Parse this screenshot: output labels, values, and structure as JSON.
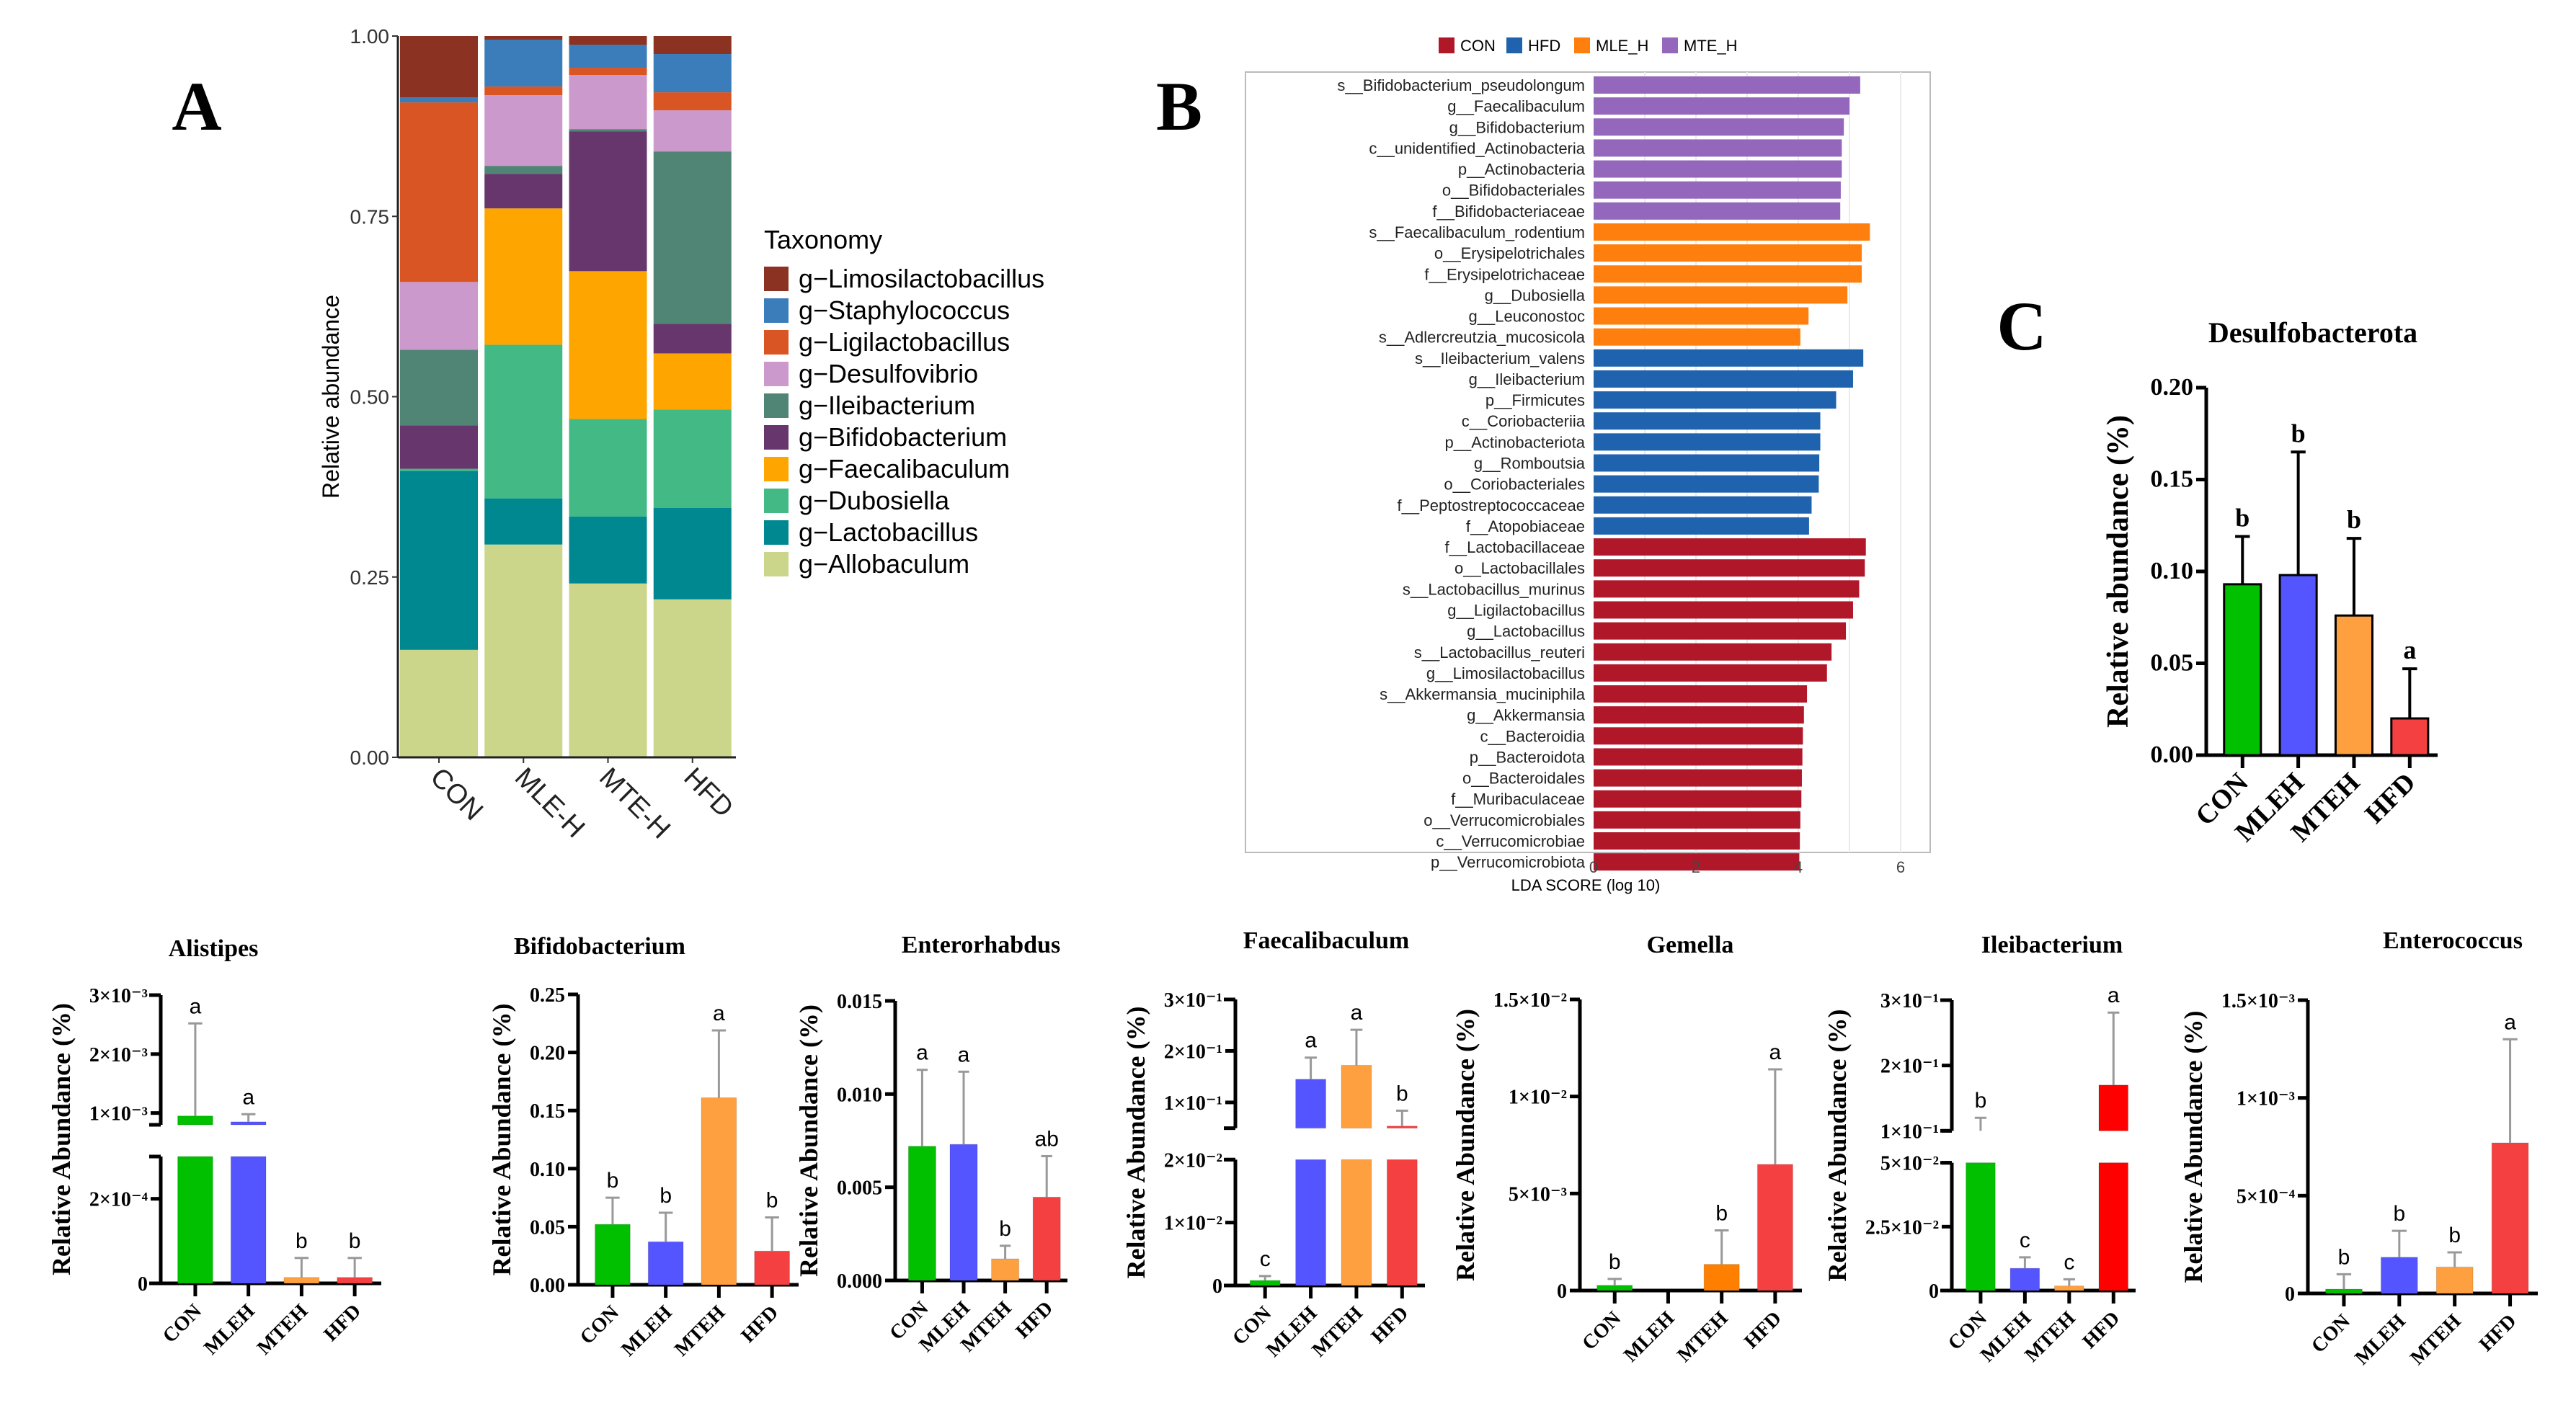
{
  "panel_labels": {
    "a": "A",
    "b": "B",
    "c": "C"
  },
  "group_colors": {
    "CON": "#00c000",
    "MLEH": "#5555ff",
    "MTEH": "#ffa040",
    "HFD": "#f44040"
  },
  "chart_data": [
    {
      "id": "A",
      "type": "bar",
      "stacked": true,
      "title": "",
      "xlabel": "",
      "ylabel": "Relative abundance",
      "ylim": [
        0,
        1
      ],
      "yticks": [
        {
          "v": 0,
          "label": "0.00"
        },
        {
          "v": 0.25,
          "label": "0.25"
        },
        {
          "v": 0.5,
          "label": "0.50"
        },
        {
          "v": 0.75,
          "label": "0.75"
        },
        {
          "v": 1,
          "label": "1.00"
        }
      ],
      "categories": [
        "CON",
        "MLE-H",
        "MTE-H",
        "HFD"
      ],
      "legend_title": "Taxonomy",
      "legend_placement": "right",
      "series": [
        {
          "name": "g−Limosilactobacillus",
          "color": "#8b3222",
          "values": [
            0.085,
            0.005,
            0.012,
            0.025
          ]
        },
        {
          "name": "g−Staphylococcus",
          "color": "#3a7dba",
          "values": [
            0.007,
            0.065,
            0.032,
            0.053
          ]
        },
        {
          "name": "g−Ligilactobacillus",
          "color": "#d95624",
          "values": [
            0.249,
            0.012,
            0.01,
            0.025
          ]
        },
        {
          "name": "g−Desulfovibrio",
          "color": "#cc99cc",
          "values": [
            0.094,
            0.098,
            0.075,
            0.057
          ]
        },
        {
          "name": "g−Ileibacterium",
          "color": "#508575",
          "values": [
            0.105,
            0.011,
            0.003,
            0.239
          ]
        },
        {
          "name": "g−Bifidobacterium",
          "color": "#66366c",
          "values": [
            0.06,
            0.048,
            0.194,
            0.041
          ]
        },
        {
          "name": "g−Faecalibaculum",
          "color": "#ffa500",
          "values": [
            0.0,
            0.189,
            0.205,
            0.078
          ]
        },
        {
          "name": "g−Dubosiella",
          "color": "#43b985",
          "values": [
            0.003,
            0.213,
            0.135,
            0.136
          ]
        },
        {
          "name": "g−Lactobacillus",
          "color": "#008891",
          "values": [
            0.248,
            0.064,
            0.093,
            0.127
          ]
        },
        {
          "name": "g−Allobaculum",
          "color": "#cbd68a",
          "values": [
            0.149,
            0.295,
            0.241,
            0.219
          ]
        }
      ]
    },
    {
      "id": "B",
      "type": "bar",
      "orientation": "horizontal",
      "title": "",
      "xlabel": "LDA SCORE (log 10)",
      "xlim": [
        0,
        6.5
      ],
      "xticks": [
        {
          "v": 0,
          "label": "0"
        },
        {
          "v": 2,
          "label": "2"
        },
        {
          "v": 4,
          "label": "4"
        },
        {
          "v": 6,
          "label": "6"
        }
      ],
      "legend_placement": "top",
      "legend": [
        {
          "name": "CON",
          "color": "#b0182a"
        },
        {
          "name": "HFD",
          "color": "#1f62ad"
        },
        {
          "name": "MLE_H",
          "color": "#ff7f0e"
        },
        {
          "name": "MTE_H",
          "color": "#9467bd"
        }
      ],
      "rows": [
        {
          "label": "s__Bifidobacterium_pseudolongum",
          "group": "MTE_H",
          "value": 5.21
        },
        {
          "label": "g__Faecalibaculum",
          "group": "MTE_H",
          "value": 5.0
        },
        {
          "label": "g__Bifidobacterium",
          "group": "MTE_H",
          "value": 4.89
        },
        {
          "label": "c__unidentified_Actinobacteria",
          "group": "MTE_H",
          "value": 4.85
        },
        {
          "label": "p__Actinobacteria",
          "group": "MTE_H",
          "value": 4.85
        },
        {
          "label": "o__Bifidobacteriales",
          "group": "MTE_H",
          "value": 4.83
        },
        {
          "label": "f__Bifidobacteriaceae",
          "group": "MTE_H",
          "value": 4.82
        },
        {
          "label": "s__Faecalibaculum_rodentium",
          "group": "MLE_H",
          "value": 5.4
        },
        {
          "label": "o__Erysipelotrichales",
          "group": "MLE_H",
          "value": 5.24
        },
        {
          "label": "f__Erysipelotrichaceae",
          "group": "MLE_H",
          "value": 5.24
        },
        {
          "label": "g__Dubosiella",
          "group": "MLE_H",
          "value": 4.96
        },
        {
          "label": "g__Leuconostoc",
          "group": "MLE_H",
          "value": 4.2
        },
        {
          "label": "s__Adlercreutzia_mucosicola",
          "group": "MLE_H",
          "value": 4.04
        },
        {
          "label": "s__Ileibacterium_valens",
          "group": "HFD",
          "value": 5.27
        },
        {
          "label": "g__Ileibacterium",
          "group": "HFD",
          "value": 5.07
        },
        {
          "label": "p__Firmicutes",
          "group": "HFD",
          "value": 4.74
        },
        {
          "label": "c__Coriobacteriia",
          "group": "HFD",
          "value": 4.43
        },
        {
          "label": "p__Actinobacteriota",
          "group": "HFD",
          "value": 4.43
        },
        {
          "label": "g__Romboutsia",
          "group": "HFD",
          "value": 4.41
        },
        {
          "label": "o__Coriobacteriales",
          "group": "HFD",
          "value": 4.4
        },
        {
          "label": "f__Peptostreptococcaceae",
          "group": "HFD",
          "value": 4.26
        },
        {
          "label": "f__Atopobiaceae",
          "group": "HFD",
          "value": 4.21
        },
        {
          "label": "f__Lactobacillaceae",
          "group": "CON",
          "value": 5.32
        },
        {
          "label": "o__Lactobacillales",
          "group": "CON",
          "value": 5.3
        },
        {
          "label": "s__Lactobacillus_murinus",
          "group": "CON",
          "value": 5.19
        },
        {
          "label": "g__Ligilactobacillus",
          "group": "CON",
          "value": 5.07
        },
        {
          "label": "g__Lactobacillus",
          "group": "CON",
          "value": 4.93
        },
        {
          "label": "s__Lactobacillus_reuteri",
          "group": "CON",
          "value": 4.65
        },
        {
          "label": "g__Limosilactobacillus",
          "group": "CON",
          "value": 4.56
        },
        {
          "label": "s__Akkermansia_muciniphila",
          "group": "CON",
          "value": 4.17
        },
        {
          "label": "g__Akkermansia",
          "group": "CON",
          "value": 4.11
        },
        {
          "label": "c__Bacteroidia",
          "group": "CON",
          "value": 4.09
        },
        {
          "label": "p__Bacteroidota",
          "group": "CON",
          "value": 4.08
        },
        {
          "label": "o__Bacteroidales",
          "group": "CON",
          "value": 4.07
        },
        {
          "label": "f__Muribaculaceae",
          "group": "CON",
          "value": 4.06
        },
        {
          "label": "o__Verrucomicrobiales",
          "group": "CON",
          "value": 4.04
        },
        {
          "label": "c__Verrucomicrobiae",
          "group": "CON",
          "value": 4.03
        },
        {
          "label": "p__Verrucomicrobiota",
          "group": "CON",
          "value": 4.02
        }
      ]
    },
    {
      "id": "C",
      "type": "bar",
      "title": "Desulfobacterota",
      "ylabel": "Relative abundance (%)",
      "categories": [
        "CON",
        "MLEH",
        "MTEH",
        "HFD"
      ],
      "colors": [
        "#00c000",
        "#5555ff",
        "#ffa040",
        "#f44040"
      ],
      "values": [
        0.093,
        0.098,
        0.076,
        0.02
      ],
      "errors_upper": [
        0.119,
        0.165,
        0.118,
        0.047
      ],
      "letters": [
        "b",
        "b",
        "b",
        "a"
      ],
      "segments": [
        [
          0,
          0.2
        ]
      ],
      "yticks": [
        {
          "v": 0,
          "label": "0.00"
        },
        {
          "v": 0.05,
          "label": "0.05"
        },
        {
          "v": 0.1,
          "label": "0.10"
        },
        {
          "v": 0.15,
          "label": "0.15"
        },
        {
          "v": 0.2,
          "label": "0.20"
        }
      ]
    },
    {
      "id": "alistipes",
      "type": "bar",
      "title": "Alistipes",
      "ylabel": "Relative Abundance (%)",
      "categories": [
        "CON",
        "MLEH",
        "MTEH",
        "HFD"
      ],
      "colors": [
        "#00c000",
        "#5555ff",
        "#ffa040",
        "#f44040"
      ],
      "values": [
        0.00095,
        0.00085,
        1.4e-05,
        1.4e-05
      ],
      "errors_upper": [
        0.00252,
        0.00098,
        6e-05,
        6e-05
      ],
      "letters": [
        "a",
        "a",
        "b",
        "b"
      ],
      "segments": [
        [
          0,
          0.0003
        ],
        [
          0.0008,
          0.003
        ]
      ],
      "yticks": [
        {
          "v": 0,
          "label": "0"
        },
        {
          "v": 0.0002,
          "label": "2×10⁻⁴"
        },
        {
          "v": 0.001,
          "label": "1×10⁻³"
        },
        {
          "v": 0.002,
          "label": "2×10⁻³"
        },
        {
          "v": 0.003,
          "label": "3×10⁻³"
        }
      ]
    },
    {
      "id": "bifidobacterium",
      "type": "bar",
      "title": "Bifidobacterium",
      "ylabel": "Relative Abundance (%)",
      "categories": [
        "CON",
        "MLEH",
        "MTEH",
        "HFD"
      ],
      "colors": [
        "#00c000",
        "#5555ff",
        "#ffa040",
        "#f44040"
      ],
      "values": [
        0.052,
        0.037,
        0.161,
        0.029
      ],
      "errors_upper": [
        0.075,
        0.062,
        0.219,
        0.058
      ],
      "letters": [
        "b",
        "b",
        "a",
        "b"
      ],
      "segments": [
        [
          0,
          0.25
        ]
      ],
      "yticks": [
        {
          "v": 0,
          "label": "0.00"
        },
        {
          "v": 0.05,
          "label": "0.05"
        },
        {
          "v": 0.1,
          "label": "0.10"
        },
        {
          "v": 0.15,
          "label": "0.15"
        },
        {
          "v": 0.2,
          "label": "0.20"
        },
        {
          "v": 0.25,
          "label": "0.25"
        }
      ]
    },
    {
      "id": "enterorhabdus",
      "type": "bar",
      "title": "Enterorhabdus",
      "ylabel": "Relative Abundance (%)",
      "categories": [
        "CON",
        "MLEH",
        "MTEH",
        "HFD"
      ],
      "colors": [
        "#00c000",
        "#5555ff",
        "#ffa040",
        "#f44040"
      ],
      "values": [
        0.0072,
        0.0073,
        0.00116,
        0.00447
      ],
      "errors_upper": [
        0.0113,
        0.0112,
        0.00186,
        0.00667
      ],
      "letters": [
        "a",
        "a",
        "b",
        "ab"
      ],
      "segments": [
        [
          0,
          0.015
        ]
      ],
      "yticks": [
        {
          "v": 0,
          "label": "0.000"
        },
        {
          "v": 0.005,
          "label": "0.005"
        },
        {
          "v": 0.01,
          "label": "0.010"
        },
        {
          "v": 0.015,
          "label": "0.015"
        }
      ]
    },
    {
      "id": "faecalibaculum",
      "type": "bar",
      "title": "Faecalibaculum",
      "ylabel": "Relative Abundance (%)",
      "categories": [
        "CON",
        "MLEH",
        "MTEH",
        "HFD"
      ],
      "colors": [
        "#00c000",
        "#5555ff",
        "#ffa040",
        "#f44040"
      ],
      "values": [
        0.0008,
        0.145,
        0.172,
        0.054
      ],
      "errors_upper": [
        0.0015,
        0.187,
        0.241,
        0.084
      ],
      "letters": [
        "c",
        "a",
        "a",
        "b"
      ],
      "segments": [
        [
          0,
          0.02
        ],
        [
          0.05,
          0.3
        ]
      ],
      "yticks": [
        {
          "v": 0,
          "label": "0"
        },
        {
          "v": 0.01,
          "label": "1×10⁻²"
        },
        {
          "v": 0.02,
          "label": "2×10⁻²"
        },
        {
          "v": 0.1,
          "label": "1×10⁻¹"
        },
        {
          "v": 0.2,
          "label": "2×10⁻¹"
        },
        {
          "v": 0.3,
          "label": "3×10⁻¹"
        }
      ]
    },
    {
      "id": "gemella",
      "type": "bar",
      "title": "Gemella",
      "ylabel": "Relative Abundance (%)",
      "categories": [
        "CON",
        "MLEH",
        "MTEH",
        "HFD"
      ],
      "colors": [
        "#00c000",
        "#5555ff",
        "#ff8000",
        "#f44040"
      ],
      "values": [
        0.00027,
        0,
        0.00135,
        0.0065
      ],
      "errors_upper": [
        0.0006,
        0,
        0.0031,
        0.0114
      ],
      "letters": [
        "b",
        "",
        "b",
        "a"
      ],
      "segments": [
        [
          0,
          0.015
        ]
      ],
      "yticks": [
        {
          "v": 0,
          "label": "0"
        },
        {
          "v": 0.005,
          "label": "5×10⁻³"
        },
        {
          "v": 0.01,
          "label": "1×10⁻²"
        },
        {
          "v": 0.015,
          "label": "1.5×10⁻²"
        }
      ]
    },
    {
      "id": "ileibacterium",
      "type": "bar",
      "title": "Ileibacterium",
      "ylabel": "Relative Abundance (%)",
      "categories": [
        "CON",
        "MLEH",
        "MTEH",
        "HFD"
      ],
      "colors": [
        "#00c000",
        "#5555ff",
        "#ffa040",
        "#ff0000"
      ],
      "values": [
        0.098,
        0.0087,
        0.0018,
        0.17
      ],
      "errors_upper": [
        0.12,
        0.013,
        0.0044,
        0.281
      ],
      "letters": [
        "b",
        "c",
        "c",
        "a"
      ],
      "segments": [
        [
          0,
          0.05
        ],
        [
          0.1,
          0.3
        ]
      ],
      "yticks": [
        {
          "v": 0,
          "label": "0"
        },
        {
          "v": 0.025,
          "label": "2.5×10⁻²"
        },
        {
          "v": 0.05,
          "label": "5×10⁻²"
        },
        {
          "v": 0.1,
          "label": "1×10⁻¹"
        },
        {
          "v": 0.2,
          "label": "2×10⁻¹"
        },
        {
          "v": 0.3,
          "label": "3×10⁻¹"
        }
      ]
    },
    {
      "id": "enterococcus",
      "type": "bar",
      "title": "Enterococcus",
      "ylabel": "Relative Abundance (%)",
      "categories": [
        "CON",
        "MLEH",
        "MTEH",
        "HFD"
      ],
      "colors": [
        "#00c000",
        "#5555ff",
        "#ffa040",
        "#f44040"
      ],
      "values": [
        2.2e-05,
        0.000185,
        0.000135,
        0.00077
      ],
      "errors_upper": [
        9.8e-05,
        0.00032,
        0.00021,
        0.0013
      ],
      "letters": [
        "b",
        "b",
        "b",
        "a"
      ],
      "segments": [
        [
          0,
          0.0015
        ]
      ],
      "yticks": [
        {
          "v": 0,
          "label": "0"
        },
        {
          "v": 0.0005,
          "label": "5×10⁻⁴"
        },
        {
          "v": 0.001,
          "label": "1×10⁻³"
        },
        {
          "v": 0.0015,
          "label": "1.5×10⁻³"
        }
      ]
    }
  ]
}
